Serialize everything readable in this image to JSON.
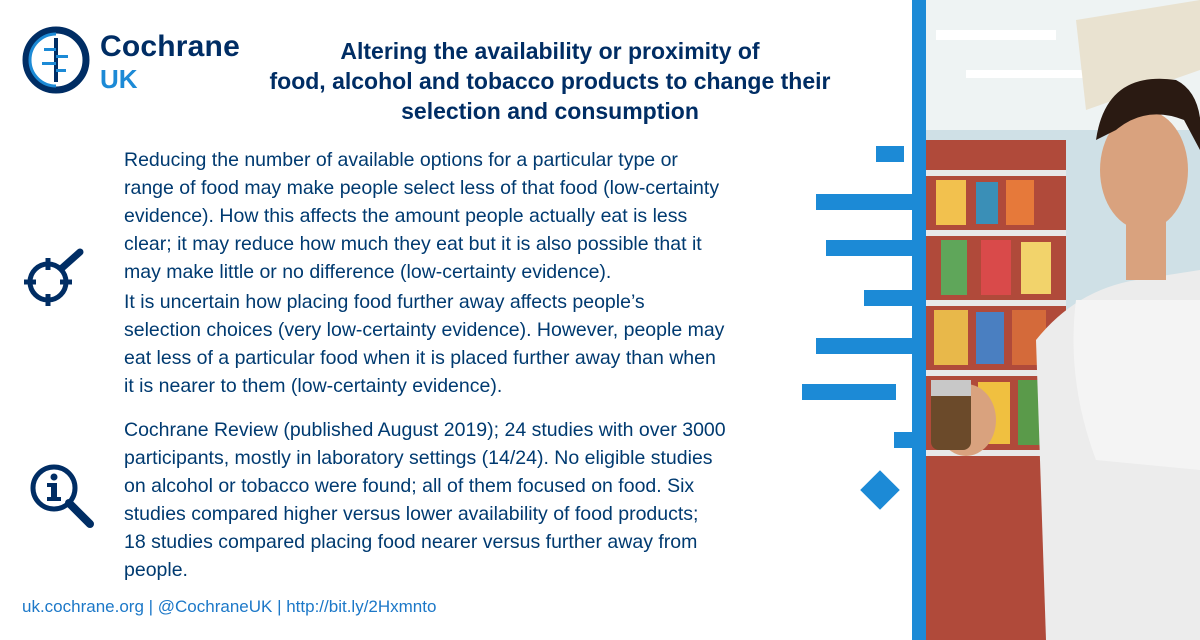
{
  "logo": {
    "word1": "Cochrane",
    "word2": "UK"
  },
  "title_lines": [
    "Altering the availability or proximity of",
    "food, alcohol and tobacco products to change their",
    "selection and consumption"
  ],
  "paragraph1": [
    "Reducing the number of available options for a particular type or",
    "range of food may make people select less of that food (low-certainty",
    "evidence). How this affects the amount people actually eat is less",
    "clear; it may reduce how much they eat but it is also possible that it",
    "may make little or no difference (low-certainty evidence)."
  ],
  "paragraph2": [
    "It is uncertain how placing food further away affects people’s",
    "selection choices (very low-certainty evidence). However, people may",
    "eat less of a particular food when it is placed further away than when",
    "it is nearer to them (low-certainty evidence)."
  ],
  "paragraph3": [
    "Cochrane Review (published August 2019); 24 studies with over 3000",
    "participants, mostly in laboratory settings (14/24). No eligible studies",
    "on alcohol or tobacco were found; all of them focused on food. Six",
    "studies compared higher versus lower availability of food products;",
    "18 studies compared placing food nearer versus further away from",
    "people."
  ],
  "footer": "uk.cochrane.org | @CochraneUK | http://bit.ly/2Hxmnto",
  "icons": {
    "target": "target-search-icon",
    "info": "info-magnifier-icon"
  },
  "colors": {
    "navy": "#002d64",
    "accent_blue": "#1c8ad6",
    "text_blue": "#003a70",
    "link_blue": "#1c78c8"
  }
}
